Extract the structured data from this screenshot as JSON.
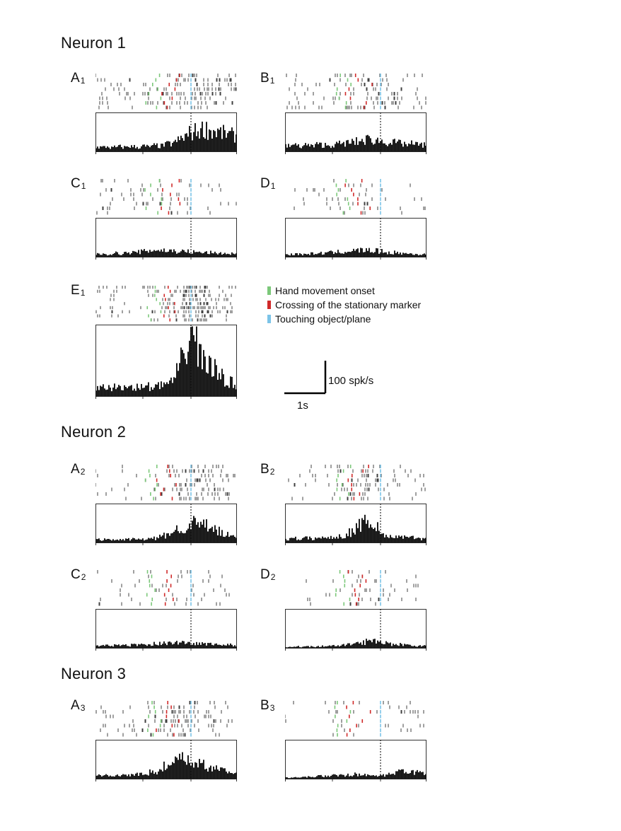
{
  "neurons": [
    {
      "title": "Neuron 1"
    },
    {
      "title": "Neuron 2"
    },
    {
      "title": "Neuron 3"
    }
  ],
  "legend": [
    {
      "label": "Hand movement onset",
      "color": "#7cc87a"
    },
    {
      "label": "Crossing of the stationary marker",
      "color": "#d02a2a"
    },
    {
      "label": "Touching object/plane",
      "color": "#7cc4e8"
    }
  ],
  "scale": {
    "rate_label": "100 spk/s",
    "time_label": "1s"
  },
  "colors": {
    "spike": "#111111",
    "bar": "#111111"
  },
  "chart_data": [
    {
      "type": "bar",
      "panel": "A",
      "sub": "1",
      "align_time_s": 0,
      "hist_ylim": [
        0,
        100
      ],
      "histogram": "low baseline, strong increase after ~-0.5 s, peaking around touch",
      "bin_profile": [
        8,
        8,
        9,
        7,
        8,
        9,
        8,
        10,
        9,
        8,
        10,
        9,
        9,
        11,
        10,
        12,
        14,
        16,
        20,
        24,
        28,
        33,
        36,
        38,
        40,
        38,
        36,
        35,
        33,
        32,
        30,
        28
      ]
    },
    {
      "type": "bar",
      "panel": "B",
      "sub": "1",
      "align_time_s": 0,
      "hist_ylim": [
        0,
        100
      ],
      "bin_profile": [
        10,
        12,
        11,
        10,
        12,
        11,
        10,
        13,
        12,
        11,
        12,
        13,
        14,
        15,
        16,
        17,
        18,
        20,
        22,
        21,
        20,
        19,
        18,
        17,
        16,
        15,
        14,
        13,
        14,
        13,
        12,
        12
      ]
    },
    {
      "type": "bar",
      "panel": "C",
      "sub": "1",
      "align_time_s": 0,
      "hist_ylim": [
        0,
        100
      ],
      "bin_profile": [
        5,
        6,
        5,
        6,
        7,
        6,
        7,
        8,
        8,
        9,
        10,
        11,
        12,
        13,
        12,
        12,
        11,
        11,
        10,
        10,
        10,
        9,
        9,
        8,
        8,
        8,
        7,
        7,
        7,
        6,
        6,
        6
      ]
    },
    {
      "type": "bar",
      "panel": "D",
      "sub": "1",
      "align_time_s": 0,
      "hist_ylim": [
        0,
        100
      ],
      "bin_profile": [
        5,
        5,
        6,
        5,
        5,
        6,
        6,
        7,
        7,
        8,
        8,
        9,
        9,
        10,
        11,
        11,
        12,
        12,
        12,
        11,
        11,
        10,
        9,
        8,
        8,
        7,
        7,
        6,
        6,
        5,
        5,
        5
      ]
    },
    {
      "type": "bar",
      "panel": "E",
      "sub": "1",
      "align_time_s": 0,
      "hist_ylim": [
        0,
        100
      ],
      "bin_profile": [
        10,
        11,
        12,
        11,
        12,
        11,
        12,
        12,
        13,
        12,
        12,
        13,
        12,
        13,
        14,
        15,
        18,
        22,
        30,
        45,
        70,
        85,
        78,
        60,
        48,
        40,
        34,
        30,
        26,
        22,
        18,
        16
      ]
    },
    {
      "type": "bar",
      "panel": "A",
      "sub": "2",
      "align_time_s": 0,
      "hist_ylim": [
        0,
        100
      ],
      "bin_profile": [
        6,
        6,
        5,
        6,
        6,
        5,
        6,
        6,
        7,
        6,
        6,
        7,
        7,
        8,
        10,
        13,
        16,
        20,
        24,
        28,
        30,
        32,
        34,
        33,
        30,
        28,
        24,
        20,
        16,
        14,
        12,
        10
      ]
    },
    {
      "type": "bar",
      "panel": "B",
      "sub": "2",
      "align_time_s": 0,
      "hist_ylim": [
        0,
        100
      ],
      "bin_profile": [
        7,
        7,
        8,
        7,
        8,
        8,
        8,
        9,
        9,
        9,
        10,
        11,
        12,
        14,
        18,
        24,
        32,
        38,
        42,
        36,
        26,
        18,
        14,
        12,
        11,
        10,
        10,
        9,
        9,
        9,
        8,
        8
      ]
    },
    {
      "type": "bar",
      "panel": "C",
      "sub": "2",
      "align_time_s": 0,
      "hist_ylim": [
        0,
        100
      ],
      "bin_profile": [
        4,
        5,
        5,
        4,
        5,
        5,
        5,
        5,
        6,
        6,
        6,
        7,
        7,
        8,
        8,
        9,
        10,
        10,
        10,
        10,
        9,
        9,
        8,
        8,
        8,
        7,
        7,
        7,
        6,
        6,
        6,
        5
      ]
    },
    {
      "type": "bar",
      "panel": "D",
      "sub": "2",
      "align_time_s": 0,
      "hist_ylim": [
        0,
        100
      ],
      "bin_profile": [
        2,
        2,
        3,
        2,
        3,
        3,
        3,
        3,
        4,
        4,
        4,
        5,
        5,
        6,
        7,
        8,
        9,
        10,
        12,
        14,
        15,
        13,
        10,
        8,
        7,
        7,
        6,
        5,
        5,
        4,
        4,
        4
      ]
    },
    {
      "type": "bar",
      "panel": "A",
      "sub": "3",
      "align_time_s": 0,
      "hist_ylim": [
        0,
        100
      ],
      "bin_profile": [
        6,
        6,
        7,
        6,
        7,
        6,
        7,
        7,
        8,
        8,
        9,
        10,
        12,
        14,
        18,
        22,
        26,
        30,
        32,
        34,
        32,
        30,
        28,
        26,
        24,
        22,
        20,
        18,
        16,
        14,
        12,
        10
      ]
    },
    {
      "type": "bar",
      "panel": "B3",
      "sub": "3",
      "align_time_s": 0,
      "hist_ylim": [
        0,
        100
      ],
      "bin_profile": [
        3,
        3,
        4,
        3,
        4,
        4,
        4,
        5,
        5,
        6,
        6,
        7,
        7,
        7,
        8,
        8,
        7,
        7,
        6,
        6,
        5,
        5,
        6,
        8,
        10,
        12,
        14,
        15,
        13,
        12,
        10,
        9
      ]
    }
  ]
}
